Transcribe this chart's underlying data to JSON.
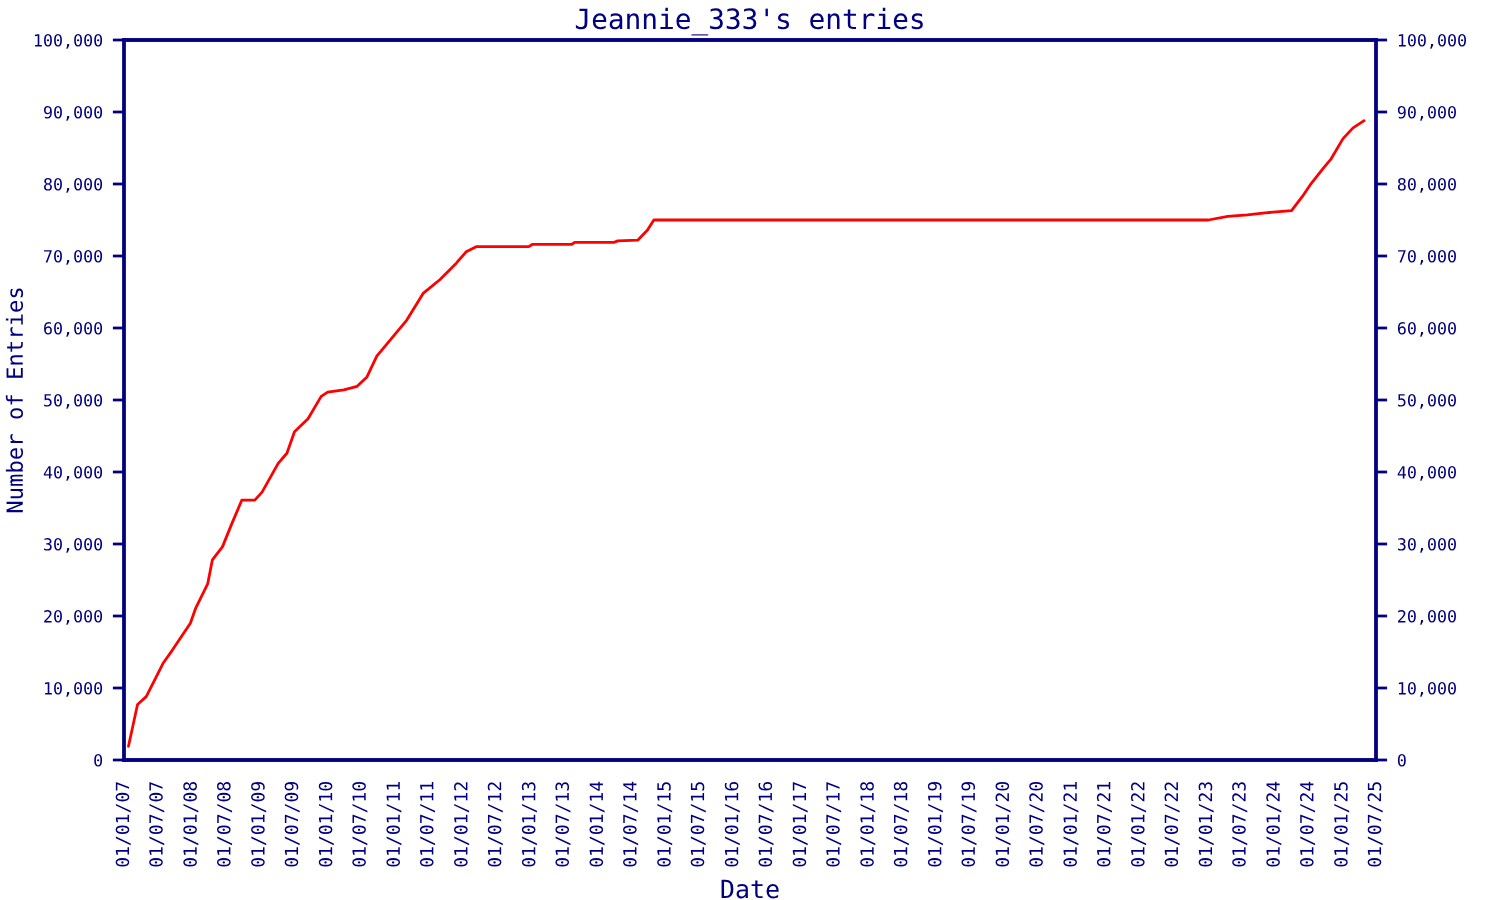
{
  "chart_data": {
    "type": "line",
    "title": "Jeannie_333's entries",
    "xlabel": "Date",
    "ylabel": "Number of Entries",
    "x": [
      "2007-01-25",
      "2007-03-15",
      "2007-05-01",
      "2007-07-30",
      "2007-09-20",
      "2007-12-25",
      "2008-01-23",
      "2008-03-28",
      "2008-04-22",
      "2008-06-15",
      "2008-08-06",
      "2008-09-28",
      "2008-12-07",
      "2009-01-15",
      "2009-04-12",
      "2009-05-29",
      "2009-07-09",
      "2009-09-20",
      "2009-11-30",
      "2010-01-04",
      "2010-04-01",
      "2010-06-12",
      "2010-08-04",
      "2010-09-26",
      "2010-11-01",
      "2011-03-07",
      "2011-06-03",
      "2011-09-01",
      "2011-11-29",
      "2012-01-22",
      "2012-03-15",
      "2012-12-24",
      "2013-01-12",
      "2013-08-12",
      "2013-08-29",
      "2014-03-31",
      "2014-04-18",
      "2014-08-04",
      "2014-09-26",
      "2014-10-30",
      "2023-01-08",
      "2023-04-23",
      "2023-08-07",
      "2023-11-11",
      "2024-04-01",
      "2024-06-05",
      "2024-07-17",
      "2024-09-20",
      "2024-11-01",
      "2025-01-04",
      "2025-02-27",
      "2025-04-28"
    ],
    "series": [
      {
        "color": "#ff0000",
        "values": [
          1900,
          7700,
          8800,
          13400,
          15300,
          19000,
          21100,
          24500,
          27800,
          29600,
          32900,
          36100,
          36100,
          37200,
          41200,
          42600,
          45600,
          47400,
          50500,
          51100,
          51400,
          51900,
          53200,
          56100,
          57200,
          61100,
          64800,
          66700,
          69000,
          70600,
          71300,
          71300,
          71600,
          71600,
          71900,
          71900,
          72100,
          72200,
          73600,
          75000,
          75000,
          75500,
          75700,
          76000,
          76300,
          78500,
          80100,
          82200,
          83500,
          86300,
          87800,
          88800
        ]
      }
    ],
    "xlim": [
      "2007-01-01",
      "2025-07-01"
    ],
    "xticks": [
      {
        "value": "2007-01-01",
        "label": "01/01/07"
      },
      {
        "value": "2007-07-01",
        "label": "01/07/07"
      },
      {
        "value": "2008-01-01",
        "label": "01/01/08"
      },
      {
        "value": "2008-07-01",
        "label": "01/07/08"
      },
      {
        "value": "2009-01-01",
        "label": "01/01/09"
      },
      {
        "value": "2009-07-01",
        "label": "01/07/09"
      },
      {
        "value": "2010-01-01",
        "label": "01/01/10"
      },
      {
        "value": "2010-07-01",
        "label": "01/07/10"
      },
      {
        "value": "2011-01-01",
        "label": "01/01/11"
      },
      {
        "value": "2011-07-01",
        "label": "01/07/11"
      },
      {
        "value": "2012-01-01",
        "label": "01/01/12"
      },
      {
        "value": "2012-07-01",
        "label": "01/07/12"
      },
      {
        "value": "2013-01-01",
        "label": "01/01/13"
      },
      {
        "value": "2013-07-01",
        "label": "01/07/13"
      },
      {
        "value": "2014-01-01",
        "label": "01/01/14"
      },
      {
        "value": "2014-07-01",
        "label": "01/07/14"
      },
      {
        "value": "2015-01-01",
        "label": "01/01/15"
      },
      {
        "value": "2015-07-01",
        "label": "01/07/15"
      },
      {
        "value": "2016-01-01",
        "label": "01/01/16"
      },
      {
        "value": "2016-07-01",
        "label": "01/07/16"
      },
      {
        "value": "2017-01-01",
        "label": "01/01/17"
      },
      {
        "value": "2017-07-01",
        "label": "01/07/17"
      },
      {
        "value": "2018-01-01",
        "label": "01/01/18"
      },
      {
        "value": "2018-07-01",
        "label": "01/07/18"
      },
      {
        "value": "2019-01-01",
        "label": "01/01/19"
      },
      {
        "value": "2019-07-01",
        "label": "01/07/19"
      },
      {
        "value": "2020-01-01",
        "label": "01/01/20"
      },
      {
        "value": "2020-07-01",
        "label": "01/07/20"
      },
      {
        "value": "2021-01-01",
        "label": "01/01/21"
      },
      {
        "value": "2021-07-01",
        "label": "01/07/21"
      },
      {
        "value": "2022-01-01",
        "label": "01/01/22"
      },
      {
        "value": "2022-07-01",
        "label": "01/07/22"
      },
      {
        "value": "2023-01-01",
        "label": "01/01/23"
      },
      {
        "value": "2023-07-01",
        "label": "01/07/23"
      },
      {
        "value": "2024-01-01",
        "label": "01/01/24"
      },
      {
        "value": "2024-07-01",
        "label": "01/07/24"
      },
      {
        "value": "2025-01-01",
        "label": "01/01/25"
      },
      {
        "value": "2025-07-01",
        "label": "01/07/25"
      }
    ],
    "ylim": [
      0,
      100000
    ],
    "yticks": [
      0,
      {
        "value": 10000,
        "label": "10,000"
      },
      {
        "value": 20000,
        "label": "20,000"
      },
      {
        "value": 30000,
        "label": "30,000"
      },
      {
        "value": 40000,
        "label": "40,000"
      },
      {
        "value": 50000,
        "label": "50,000"
      },
      {
        "value": 60000,
        "label": "60,000"
      },
      {
        "value": 70000,
        "label": "70,000"
      },
      {
        "value": 80000,
        "label": "80,000"
      },
      {
        "value": 90000,
        "label": "90,000"
      },
      {
        "value": 100000,
        "label": "100,000"
      }
    ],
    "y2lim": [
      0,
      100000
    ],
    "y2ticks": [
      0,
      {
        "value": 10000,
        "label": "10,000"
      },
      {
        "value": 20000,
        "label": "20,000"
      },
      {
        "value": 30000,
        "label": "30,000"
      },
      {
        "value": 40000,
        "label": "40,000"
      },
      {
        "value": 50000,
        "label": "50,000"
      },
      {
        "value": 60000,
        "label": "60,000"
      },
      {
        "value": 70000,
        "label": "70,000"
      },
      {
        "value": 80000,
        "label": "80,000"
      },
      {
        "value": 90000,
        "label": "90,000"
      },
      {
        "value": 100000,
        "label": "100,000"
      }
    ],
    "grid": false,
    "legend": false,
    "marker": "none",
    "line_style": "solid"
  }
}
